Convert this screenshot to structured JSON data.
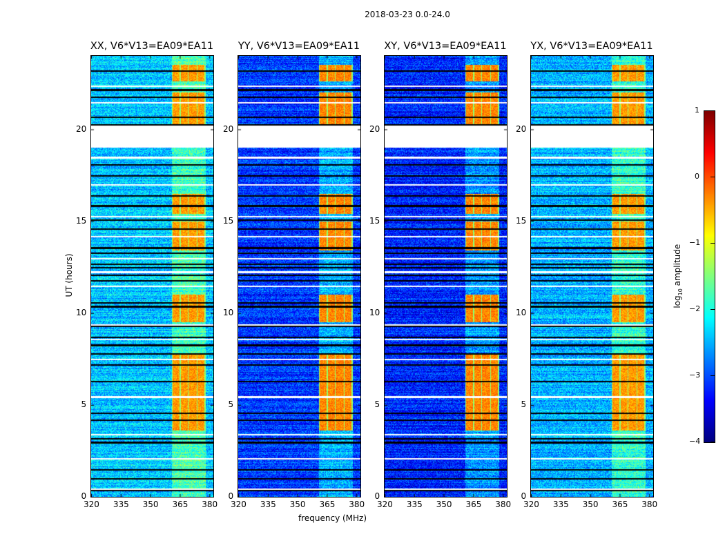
{
  "chart_data": {
    "type": "heatmap",
    "title": "2018-03-23 0.0-24.0",
    "colormap": "jet",
    "panels": [
      {
        "title": "XX, V6*V13=EA09*EA11",
        "pol": "XX",
        "baseline_level": -2.4
      },
      {
        "title": "YY, V6*V13=EA09*EA11",
        "pol": "YY",
        "baseline_level": -3.1
      },
      {
        "title": "XY, V6*V13=EA09*EA11",
        "pol": "XY",
        "baseline_level": -3.2
      },
      {
        "title": "YX, V6*V13=EA09*EA11",
        "pol": "YX",
        "baseline_level": -2.5
      }
    ],
    "xlabel": "frequency (MHz)",
    "ylabel": "UT (hours)",
    "xlim": [
      320,
      382
    ],
    "ylim": [
      0,
      24
    ],
    "xticks": [
      320,
      335,
      350,
      365,
      380
    ],
    "yticks": [
      0,
      5,
      10,
      15,
      20
    ],
    "colorbar": {
      "label": "log10 amplitude",
      "label_main": "log",
      "label_sub": "10",
      "label_rest": " amplitude",
      "range": [
        -4,
        1
      ],
      "ticks": [
        1,
        0,
        -1,
        -2,
        -3,
        -4
      ],
      "tick_labels": [
        "1",
        "0",
        "−1",
        "−2",
        "−3",
        "−4"
      ]
    },
    "rfi_band_mhz": [
      361,
      378
    ],
    "rfi_subbands_mhz": [
      [
        361.5,
        365
      ],
      [
        365.5,
        369
      ],
      [
        369.5,
        373.5
      ],
      [
        374,
        377.5
      ]
    ],
    "active_rfi_hours": [
      [
        3.6,
        7.8
      ],
      [
        9.5,
        11
      ],
      [
        13.4,
        15
      ],
      [
        15.4,
        16.5
      ],
      [
        20.3,
        22
      ],
      [
        22.6,
        23.5
      ]
    ],
    "blank_hours": [
      [
        19.0,
        20.2
      ]
    ],
    "flagged_row_hours": [
      0.4,
      0.45,
      1.0,
      1.5,
      2.1,
      3.0,
      3.2,
      3.4,
      4.2,
      4.6,
      5.5,
      6.3,
      7.2,
      7.5,
      7.8,
      8.3,
      8.6,
      8.7,
      9.3,
      9.4,
      10.4,
      10.6,
      11.5,
      11.8,
      12.1,
      12.3,
      12.5,
      12.7,
      13.0,
      13.3,
      13.6,
      14.2,
      14.6,
      15.1,
      15.3,
      15.9,
      16.4,
      17.0,
      17.5,
      18.1,
      18.5,
      20.3,
      20.7,
      21.5,
      21.8,
      22.2,
      22.4,
      23.2
    ]
  }
}
